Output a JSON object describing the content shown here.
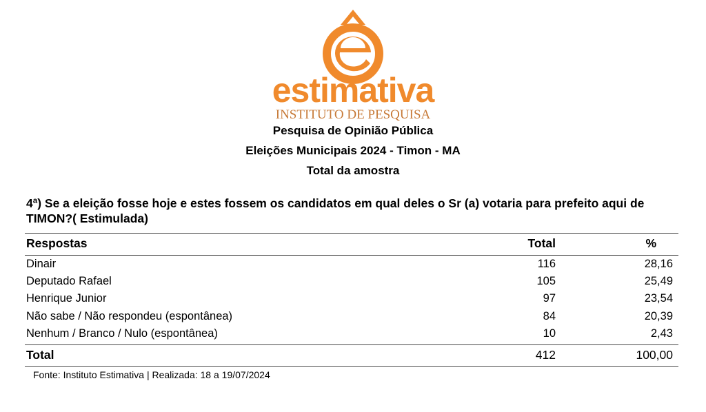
{
  "logo": {
    "brand": "estimativa",
    "subtitle": "INSTITUTO DE PESQUISA",
    "color": "#F08A2C",
    "icon": "e-circumflex-logo-icon"
  },
  "header": {
    "line1": "Pesquisa de Opinião Pública",
    "line2": "Eleições Municipais 2024 - Timon - MA",
    "line3": "Total da amostra"
  },
  "question": "4ª) Se a eleição fosse hoje e estes fossem os candidatos em qual deles o Sr (a) votaria para prefeito aqui de TIMON?( Estimulada)",
  "table": {
    "columns": [
      "Respostas",
      "Total",
      "%"
    ],
    "rows": [
      [
        "Dinair",
        "116",
        "28,16"
      ],
      [
        "Deputado Rafael",
        "105",
        "25,49"
      ],
      [
        "Henrique Junior",
        "97",
        "23,54"
      ],
      [
        "Não sabe / Não respondeu (espontânea)",
        "84",
        "20,39"
      ],
      [
        "Nenhum / Branco / Nulo (espontânea)",
        "10",
        "2,43"
      ]
    ],
    "total": [
      "Total",
      "412",
      "100,00"
    ]
  },
  "footer": "Fonte: Instituto Estimativa | Realizada:  18 a 19/07/2024"
}
